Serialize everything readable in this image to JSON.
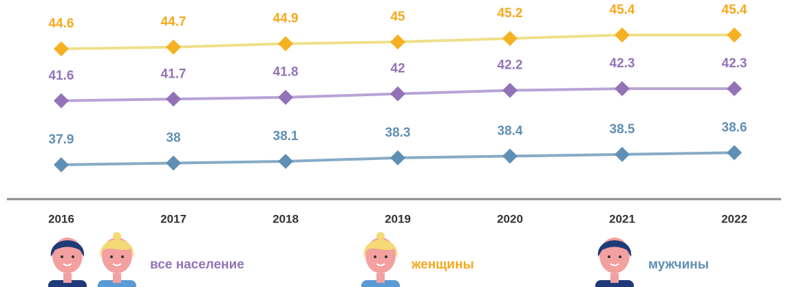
{
  "chart_data": {
    "type": "line",
    "categories": [
      "2016",
      "2017",
      "2018",
      "2019",
      "2020",
      "2021",
      "2022"
    ],
    "series": [
      {
        "name": "все население",
        "color": "#b9a3d6",
        "marker_color": "#9373b8",
        "label_color": "#9373b8",
        "values": [
          41.6,
          41.7,
          41.8,
          42.0,
          42.2,
          42.3,
          42.3
        ]
      },
      {
        "name": "женщины",
        "color": "#f0df8a",
        "marker_color": "#f6b123",
        "label_color": "#f6a81c",
        "values": [
          44.6,
          44.7,
          44.9,
          45.0,
          45.2,
          45.4,
          45.4
        ]
      },
      {
        "name": "мужчины",
        "color": "#86abc7",
        "marker_color": "#5f8fb4",
        "label_color": "#5f8fb4",
        "values": [
          37.9,
          38.0,
          38.1,
          38.3,
          38.4,
          38.5,
          38.6
        ]
      }
    ]
  }
}
